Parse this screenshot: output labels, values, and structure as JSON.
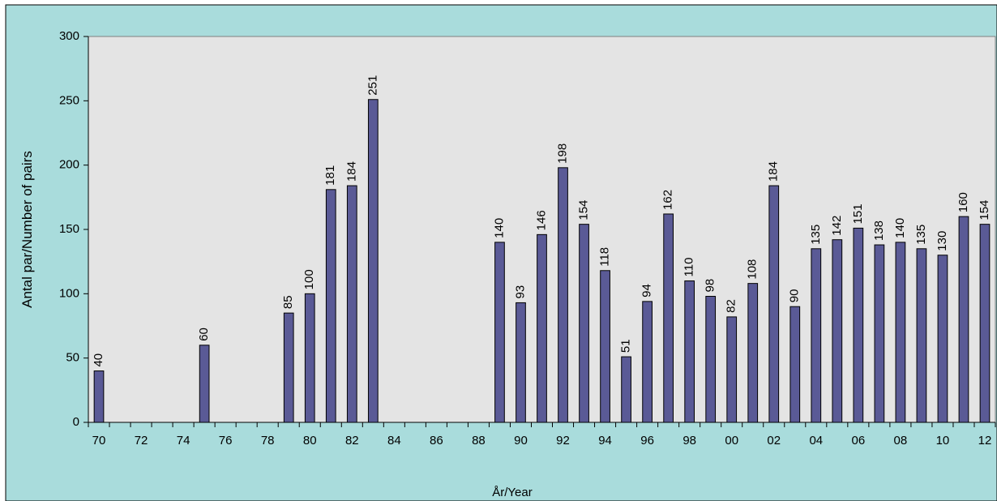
{
  "chart_data": {
    "type": "bar",
    "title": "",
    "xlabel": "År/Year",
    "ylabel": "Antal par/Number of pairs",
    "ylim": [
      0,
      300
    ],
    "yticks": [
      "0",
      "50",
      "100",
      "150",
      "200",
      "250",
      "300"
    ],
    "grid": false,
    "legend": "none",
    "x": [
      "70",
      "71",
      "72",
      "73",
      "74",
      "75",
      "76",
      "77",
      "78",
      "79",
      "80",
      "81",
      "82",
      "83",
      "84",
      "85",
      "86",
      "87",
      "88",
      "89",
      "90",
      "91",
      "92",
      "93",
      "94",
      "95",
      "96",
      "97",
      "98",
      "99",
      "00",
      "01",
      "02",
      "03",
      "04",
      "05",
      "06",
      "07",
      "08",
      "09",
      "10",
      "11",
      "12"
    ],
    "x_tick_labels": [
      "70",
      "72",
      "74",
      "76",
      "78",
      "80",
      "82",
      "84",
      "86",
      "88",
      "90",
      "92",
      "94",
      "96",
      "98",
      "00",
      "02",
      "04",
      "06",
      "08",
      "10",
      "12"
    ],
    "values": [
      40,
      null,
      null,
      null,
      null,
      60,
      null,
      null,
      null,
      85,
      100,
      181,
      184,
      251,
      null,
      null,
      null,
      null,
      null,
      140,
      93,
      146,
      198,
      154,
      118,
      51,
      94,
      162,
      110,
      98,
      82,
      108,
      184,
      90,
      135,
      142,
      151,
      138,
      140,
      135,
      130,
      160,
      154
    ],
    "colors": {
      "outer_background": "#a9dcdc",
      "plot_background": "#e4e4e4",
      "bar_fill": "#5a5a96",
      "bar_stroke": "#000000"
    }
  }
}
